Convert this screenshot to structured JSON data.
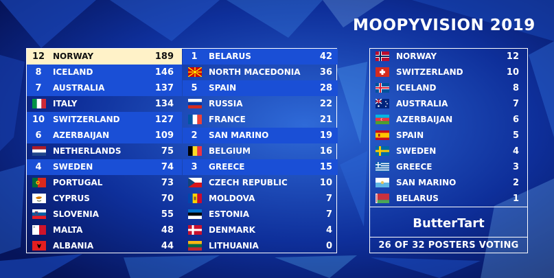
{
  "title": "MOOPYVISION 2019",
  "scoreboard": {
    "left": [
      {
        "points": "12",
        "country": "NORWAY",
        "score": "189",
        "flag": "norway-flag-icon",
        "state": "top"
      },
      {
        "points": "8",
        "country": "ICELAND",
        "score": "146",
        "flag": "",
        "state": "lit"
      },
      {
        "points": "7",
        "country": "AUSTRALIA",
        "score": "137",
        "flag": "",
        "state": "lit"
      },
      {
        "points": "",
        "country": "ITALY",
        "score": "134",
        "flag": "italy-flag-icon",
        "state": "none"
      },
      {
        "points": "10",
        "country": "SWITZERLAND",
        "score": "127",
        "flag": "",
        "state": "lit"
      },
      {
        "points": "6",
        "country": "AZERBAIJAN",
        "score": "109",
        "flag": "",
        "state": "lit"
      },
      {
        "points": "",
        "country": "NETHERLANDS",
        "score": "75",
        "flag": "netherlands-flag-icon",
        "state": "none"
      },
      {
        "points": "4",
        "country": "SWEDEN",
        "score": "74",
        "flag": "",
        "state": "lit"
      },
      {
        "points": "",
        "country": "PORTUGAL",
        "score": "73",
        "flag": "portugal-flag-icon",
        "state": "none"
      },
      {
        "points": "",
        "country": "CYPRUS",
        "score": "70",
        "flag": "cyprus-flag-icon",
        "state": "none"
      },
      {
        "points": "",
        "country": "SLOVENIA",
        "score": "55",
        "flag": "slovenia-flag-icon",
        "state": "none"
      },
      {
        "points": "",
        "country": "MALTA",
        "score": "48",
        "flag": "malta-flag-icon",
        "state": "none"
      },
      {
        "points": "",
        "country": "ALBANIA",
        "score": "44",
        "flag": "albania-flag-icon",
        "state": "none"
      }
    ],
    "right": [
      {
        "points": "1",
        "country": "BELARUS",
        "score": "42",
        "flag": "",
        "state": "lit"
      },
      {
        "points": "",
        "country": "NORTH MACEDONIA",
        "score": "36",
        "flag": "north-macedonia-flag-icon",
        "state": "none"
      },
      {
        "points": "5",
        "country": "SPAIN",
        "score": "28",
        "flag": "",
        "state": "lit"
      },
      {
        "points": "",
        "country": "RUSSIA",
        "score": "22",
        "flag": "russia-flag-icon",
        "state": "none"
      },
      {
        "points": "",
        "country": "FRANCE",
        "score": "21",
        "flag": "france-flag-icon",
        "state": "none"
      },
      {
        "points": "2",
        "country": "SAN MARINO",
        "score": "19",
        "flag": "",
        "state": "lit"
      },
      {
        "points": "",
        "country": "BELGIUM",
        "score": "16",
        "flag": "belgium-flag-icon",
        "state": "none"
      },
      {
        "points": "3",
        "country": "GREECE",
        "score": "15",
        "flag": "",
        "state": "lit"
      },
      {
        "points": "",
        "country": "CZECH REPUBLIC",
        "score": "10",
        "flag": "czech-republic-flag-icon",
        "state": "none"
      },
      {
        "points": "",
        "country": "MOLDOVA",
        "score": "7",
        "flag": "moldova-flag-icon",
        "state": "none"
      },
      {
        "points": "",
        "country": "ESTONIA",
        "score": "7",
        "flag": "estonia-flag-icon",
        "state": "none"
      },
      {
        "points": "",
        "country": "DENMARK",
        "score": "4",
        "flag": "denmark-flag-icon",
        "state": "none"
      },
      {
        "points": "",
        "country": "LITHUANIA",
        "score": "0",
        "flag": "lithuania-flag-icon",
        "state": "none"
      }
    ]
  },
  "votes": {
    "items": [
      {
        "country": "NORWAY",
        "points": "12",
        "flag": "norway-flag-icon"
      },
      {
        "country": "SWITZERLAND",
        "points": "10",
        "flag": "switzerland-flag-icon"
      },
      {
        "country": "ICELAND",
        "points": "8",
        "flag": "iceland-flag-icon"
      },
      {
        "country": "AUSTRALIA",
        "points": "7",
        "flag": "australia-flag-icon"
      },
      {
        "country": "AZERBAIJAN",
        "points": "6",
        "flag": "azerbaijan-flag-icon"
      },
      {
        "country": "SPAIN",
        "points": "5",
        "flag": "spain-flag-icon"
      },
      {
        "country": "SWEDEN",
        "points": "4",
        "flag": "sweden-flag-icon"
      },
      {
        "country": "GREECE",
        "points": "3",
        "flag": "greece-flag-icon"
      },
      {
        "country": "SAN MARINO",
        "points": "2",
        "flag": "san-marino-flag-icon"
      },
      {
        "country": "BELARUS",
        "points": "1",
        "flag": "belarus-flag-icon"
      }
    ],
    "voter": "ButterTart",
    "footer": "26 OF 32 POSTERS VOTING"
  },
  "colors": {
    "background": "#0b2a8c",
    "highlight": "#1a4fd6",
    "top": "#fff2c8"
  }
}
